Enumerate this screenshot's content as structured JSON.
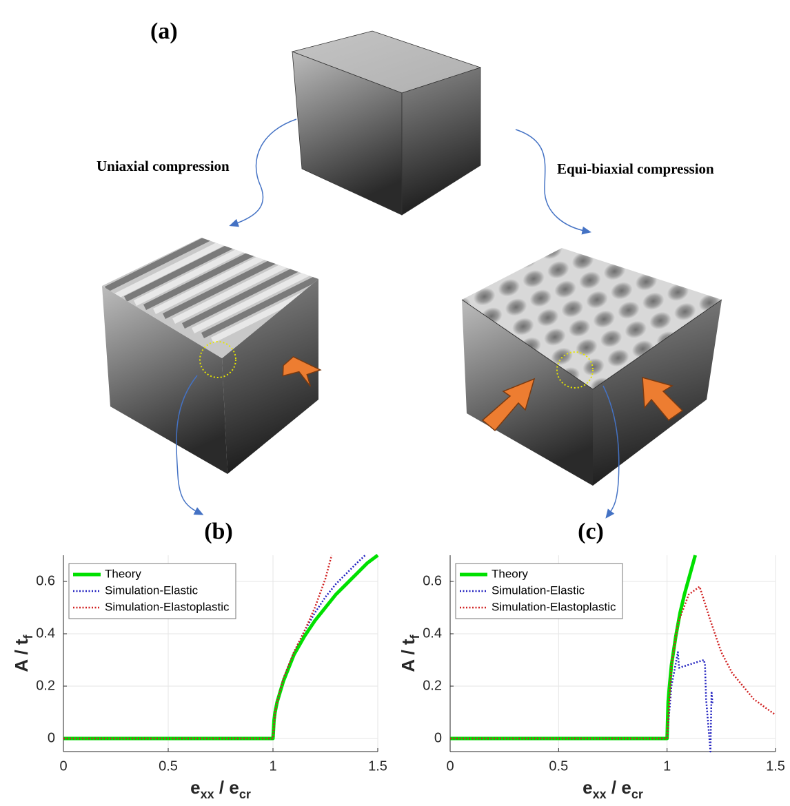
{
  "figure": {
    "label": "(a)",
    "uniaxial": "Uniaxial compression",
    "biaxial": "Equi-biaxial compression"
  },
  "chart_data": [
    {
      "type": "line",
      "label": "(b)",
      "xlabel": [
        "e",
        "xx",
        " / e",
        "cr"
      ],
      "ylabel": [
        "A / t",
        "f"
      ],
      "xlim": [
        0,
        1.5
      ],
      "ylim": [
        -0.05,
        0.7
      ],
      "xticks": [
        0,
        0.5,
        1,
        1.5
      ],
      "yticks": [
        0,
        0.2,
        0.4,
        0.6
      ],
      "grid": true,
      "legend": "upper left",
      "series": [
        {
          "name": "Theory",
          "color": "#00e000",
          "style": "solid",
          "x": [
            0,
            1,
            1.005,
            1.01,
            1.02,
            1.05,
            1.1,
            1.15,
            1.2,
            1.25,
            1.3,
            1.35,
            1.4,
            1.45,
            1.5
          ],
          "values": [
            0,
            0,
            0.07,
            0.1,
            0.14,
            0.22,
            0.32,
            0.39,
            0.45,
            0.5,
            0.55,
            0.59,
            0.63,
            0.67,
            0.7
          ]
        },
        {
          "name": "Simulation-Elastic",
          "color": "#1f1fbf",
          "style": "dotted",
          "x": [
            0,
            1,
            1.01,
            1.02,
            1.05,
            1.1,
            1.15,
            1.2,
            1.25,
            1.3,
            1.35,
            1.4,
            1.44
          ],
          "values": [
            0,
            0,
            0.1,
            0.14,
            0.23,
            0.33,
            0.41,
            0.48,
            0.54,
            0.59,
            0.63,
            0.67,
            0.7
          ]
        },
        {
          "name": "Simulation-Elastoplastic",
          "color": "#d02020",
          "style": "dotted",
          "x": [
            0,
            1,
            1.01,
            1.02,
            1.05,
            1.1,
            1.15,
            1.2,
            1.25,
            1.28
          ],
          "values": [
            0,
            0,
            0.1,
            0.14,
            0.23,
            0.33,
            0.41,
            0.5,
            0.61,
            0.7
          ]
        }
      ]
    },
    {
      "type": "line",
      "label": "(c)",
      "xlabel": [
        "e",
        "xx",
        " / e",
        "cr"
      ],
      "ylabel": [
        "A / t",
        "f"
      ],
      "xlim": [
        0,
        1.5
      ],
      "ylim": [
        -0.05,
        0.7
      ],
      "xticks": [
        0,
        0.5,
        1,
        1.5
      ],
      "yticks": [
        0,
        0.2,
        0.4,
        0.6
      ],
      "grid": true,
      "legend": "upper left",
      "series": [
        {
          "name": "Theory",
          "color": "#00e000",
          "style": "solid",
          "x": [
            0,
            1,
            1.005,
            1.01,
            1.02,
            1.04,
            1.06,
            1.08,
            1.1,
            1.13
          ],
          "values": [
            0,
            0,
            0.14,
            0.19,
            0.28,
            0.39,
            0.48,
            0.55,
            0.61,
            0.7
          ]
        },
        {
          "name": "Simulation-Elastic",
          "color": "#1f1fbf",
          "style": "dotted",
          "x": [
            0,
            1,
            1.02,
            1.05,
            1.055,
            1.17,
            1.175,
            1.18,
            1.19,
            1.2,
            1.205,
            1.21
          ],
          "values": [
            0,
            0,
            0.2,
            0.33,
            0.27,
            0.3,
            0.28,
            0.15,
            0.05,
            -0.05,
            0.18,
            0.13
          ]
        },
        {
          "name": "Simulation-Elastoplastic",
          "color": "#d02020",
          "style": "dotted",
          "x": [
            0,
            1,
            1.02,
            1.05,
            1.1,
            1.15,
            1.2,
            1.25,
            1.3,
            1.4,
            1.5
          ],
          "values": [
            0,
            0,
            0.28,
            0.44,
            0.55,
            0.58,
            0.45,
            0.33,
            0.25,
            0.15,
            0.09
          ]
        }
      ]
    }
  ]
}
